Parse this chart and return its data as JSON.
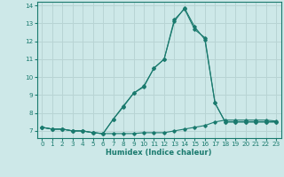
{
  "xlabel": "Humidex (Indice chaleur)",
  "xlim": [
    -0.5,
    23.5
  ],
  "ylim": [
    6.6,
    14.2
  ],
  "yticks": [
    7,
    8,
    9,
    10,
    11,
    12,
    13,
    14
  ],
  "xticks": [
    0,
    1,
    2,
    3,
    4,
    5,
    6,
    7,
    8,
    9,
    10,
    11,
    12,
    13,
    14,
    15,
    16,
    17,
    18,
    19,
    20,
    21,
    22,
    23
  ],
  "bg_color": "#cde8e8",
  "grid_color": "#b8d4d4",
  "line_color": "#1a7a6e",
  "series": [
    {
      "x": [
        0,
        1,
        2,
        3,
        4,
        5,
        6,
        7,
        8,
        9,
        10,
        11,
        12,
        13,
        14,
        15,
        16,
        17,
        18,
        19,
        20,
        21,
        22,
        23
      ],
      "y": [
        7.2,
        7.1,
        7.1,
        7.0,
        7.0,
        6.9,
        6.85,
        6.85,
        6.85,
        6.85,
        6.9,
        6.9,
        6.9,
        7.0,
        7.1,
        7.2,
        7.3,
        7.5,
        7.6,
        7.6,
        7.6,
        7.6,
        7.6,
        7.55
      ]
    },
    {
      "x": [
        0,
        1,
        2,
        3,
        4,
        5,
        6,
        7,
        8,
        9,
        10,
        11,
        12,
        13,
        14,
        15,
        16,
        17,
        18,
        19,
        20,
        21,
        22,
        23
      ],
      "y": [
        7.2,
        7.1,
        7.1,
        7.0,
        7.0,
        6.9,
        6.85,
        7.65,
        8.4,
        9.1,
        9.5,
        10.5,
        11.0,
        13.2,
        13.8,
        12.65,
        12.2,
        8.55,
        7.5,
        7.5,
        7.5,
        7.5,
        7.5,
        7.5
      ]
    },
    {
      "x": [
        0,
        1,
        2,
        3,
        4,
        5,
        6,
        7,
        8,
        9,
        10,
        11,
        12,
        13,
        14,
        15,
        16,
        17,
        18,
        19,
        20,
        21,
        22,
        23
      ],
      "y": [
        7.2,
        7.1,
        7.1,
        7.0,
        7.0,
        6.9,
        6.85,
        7.65,
        8.35,
        9.1,
        9.45,
        10.5,
        11.0,
        13.1,
        13.85,
        12.8,
        12.1,
        8.55,
        7.5,
        7.5,
        7.5,
        7.5,
        7.5,
        7.5
      ]
    }
  ]
}
